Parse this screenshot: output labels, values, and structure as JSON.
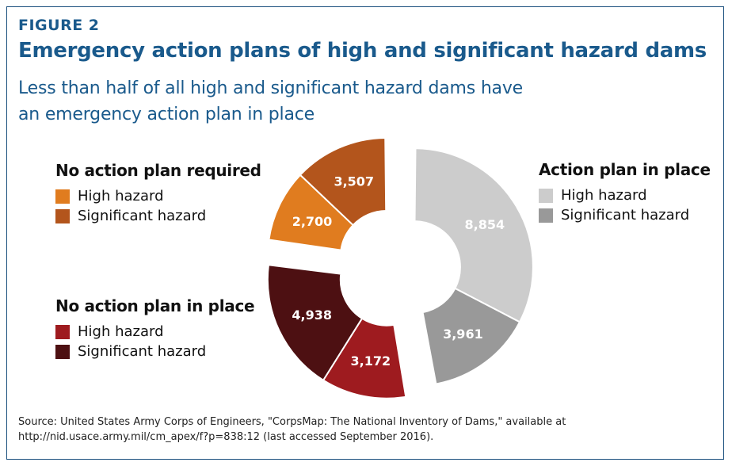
{
  "figure_label": "FIGURE 2",
  "title": "Emergency action plans of high and significant hazard dams",
  "subtitle": "Less than half of all high and significant hazard dams have an emergency action plan in place",
  "legends": [
    {
      "title": "No action plan required",
      "items": [
        {
          "label": "High hazard",
          "color": "#e07c1f"
        },
        {
          "label": "Significant hazard",
          "color": "#b3551c"
        }
      ]
    },
    {
      "title": "Action plan in place",
      "items": [
        {
          "label": "High hazard",
          "color": "#cccccc"
        },
        {
          "label": "Significant hazard",
          "color": "#999999"
        }
      ]
    },
    {
      "title": "No action plan in place",
      "items": [
        {
          "label": "High hazard",
          "color": "#9e1b1f"
        },
        {
          "label": "Significant hazard",
          "color": "#4d1012"
        }
      ]
    }
  ],
  "chart_data": {
    "type": "pie",
    "style": "exploded donut",
    "groups": [
      {
        "name": "Action plan in place",
        "slices": [
          {
            "label": "High hazard",
            "value": 8854,
            "display": "8,854",
            "color": "#cccccc"
          },
          {
            "label": "Significant hazard",
            "value": 3961,
            "display": "3,961",
            "color": "#999999"
          }
        ]
      },
      {
        "name": "No action plan in place",
        "slices": [
          {
            "label": "High hazard",
            "value": 3172,
            "display": "3,172",
            "color": "#9e1b1f"
          },
          {
            "label": "Significant hazard",
            "value": 4938,
            "display": "4,938",
            "color": "#4d1012"
          }
        ]
      },
      {
        "name": "No action plan required",
        "slices": [
          {
            "label": "High hazard",
            "value": 2700,
            "display": "2,700",
            "color": "#e07c1f"
          },
          {
            "label": "Significant hazard",
            "value": 3507,
            "display": "3,507",
            "color": "#b3551c"
          }
        ]
      }
    ]
  },
  "source": "Source: United States Army Corps of Engineers, \"CorpsMap: The National Inventory of Dams,\" available at http://nid.usace.army.mil/cm_apex/f?p=838:12 (last accessed September 2016)."
}
